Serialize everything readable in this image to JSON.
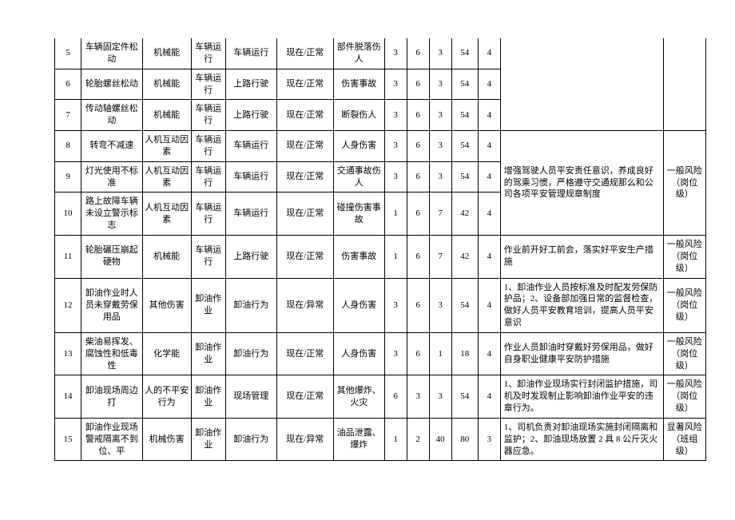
{
  "table": {
    "rows": [
      {
        "n": "5",
        "hazard": "车辆固定件松动",
        "category": "机械能",
        "activity": "车辆运行",
        "location": "车辆运行",
        "state": "现在/正常",
        "consequence": "部件脱落伤人",
        "v1": "3",
        "v2": "6",
        "v3": "3",
        "v4": "54",
        "grade": "4"
      },
      {
        "n": "6",
        "hazard": "轮胎螺丝松动",
        "category": "机械能",
        "activity": "车辆运行",
        "location": "上路行驶",
        "state": "现在/正常",
        "consequence": "伤害事故",
        "v1": "3",
        "v2": "6",
        "v3": "3",
        "v4": "54",
        "grade": "4"
      },
      {
        "n": "7",
        "hazard": "传动轴螺丝松动",
        "category": "机械能",
        "activity": "车辆运行",
        "location": "上路行驶",
        "state": "现在/正常",
        "consequence": "断裂伤人",
        "v1": "3",
        "v2": "6",
        "v3": "3",
        "v4": "54",
        "grade": "4"
      },
      {
        "n": "8",
        "hazard": "转弯不减速",
        "category": "人机互动因素",
        "activity": "车辆运行",
        "location": "车辆运行",
        "state": "现在/正常",
        "consequence": "人身伤害",
        "v1": "3",
        "v2": "6",
        "v3": "3",
        "v4": "54",
        "grade": "4"
      },
      {
        "n": "9",
        "hazard": "灯光使用不标准",
        "category": "人机互动因素",
        "activity": "车辆运行",
        "location": "车辆运行",
        "state": "现在/正常",
        "consequence": "交通事故伤人",
        "v1": "3",
        "v2": "6",
        "v3": "3",
        "v4": "54",
        "grade": "4"
      },
      {
        "n": "10",
        "hazard": "路上故障车辆未设立警示标志",
        "category": "人机互动因素",
        "activity": "车辆运行",
        "location": "车辆运行",
        "state": "现在/正常",
        "consequence": "碰撞伤害事故",
        "v1": "1",
        "v2": "6",
        "v3": "7",
        "v4": "42",
        "grade": "4"
      },
      {
        "n": "11",
        "hazard": "轮胎碾压崩起硬物",
        "category": "机械能",
        "activity": "车辆运行",
        "location": "上路行驶",
        "state": "现在/正常",
        "consequence": "伤害事故",
        "v1": "1",
        "v2": "6",
        "v3": "7",
        "v4": "42",
        "grade": "4"
      },
      {
        "n": "12",
        "hazard": "卸油作业时人员未穿戴劳保用品",
        "category": "其他伤害",
        "activity": "卸油作业",
        "location": "卸油行为",
        "state": "现在/异常",
        "consequence": "人身伤害",
        "v1": "3",
        "v2": "6",
        "v3": "3",
        "v4": "54",
        "grade": "4"
      },
      {
        "n": "13",
        "hazard": "柴油易挥发、腐蚀性和低毒性",
        "category": "化学能",
        "activity": "卸油作业",
        "location": "卸油行为",
        "state": "现在/正常",
        "consequence": "人身伤害",
        "v1": "3",
        "v2": "6",
        "v3": "1",
        "v4": "18",
        "grade": "4"
      },
      {
        "n": "14",
        "hazard": "卸油现场周边打",
        "category": "人的不平安行为",
        "activity": "卸油作业",
        "location": "现场管理",
        "state": "现在/正常",
        "consequence": "其他爆炸、火灾",
        "v1": "6",
        "v2": "3",
        "v3": "3",
        "v4": "54",
        "grade": "4"
      },
      {
        "n": "15",
        "hazard": "卸油作业现场警戒隔离不到位、平",
        "category": "机械伤害",
        "activity": "卸油作业",
        "location": "卸油行为",
        "state": "现在/异常",
        "consequence": "油品泄露、爆炸",
        "v1": "1",
        "v2": "2",
        "v3": "40",
        "v4": "80",
        "grade": "3"
      }
    ],
    "measures": {
      "m_5to7": "",
      "m_8to10": "增强驾驶人员平安责任意识，养成良好的驾乘习惯，严格遵守交通规那么和公司各项平安管理规章制度",
      "m_11": "作业前开好工前会，落实好平安生产措施",
      "m_12": "1、卸油作业人员按标准及时配发劳保防护品；2、设备部加强日常的监督检查，做好人员平安教育培训，提高人员平安意识",
      "m_13": "作业人员卸油时穿戴好劳保用品，做好自身职业健康平安防护措施",
      "m_14": "1、卸油作业现场实行封闭监护措施，司机及时发现制止影响卸油作业平安的违章行为。",
      "m_15": "1、司机负责对卸油现场实施封闭隔离和监护；2、卸油现场放置 2 具 8 公斤灭火器应急。"
    },
    "levels": {
      "l_8to10": "一般风险（岗位级）",
      "l_11": "一般风险（岗位级）",
      "l_12": "一般风险（岗位级）",
      "l_13": "一般风险（岗位级）",
      "l_14": "一般风险（岗位级）",
      "l_15": "显著风险（班组级）"
    }
  }
}
